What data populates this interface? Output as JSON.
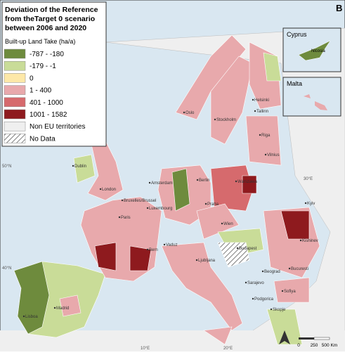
{
  "panel_label": "B",
  "legend": {
    "title_lines": [
      "Deviation of the Reference",
      "from theTarget 0 scenario",
      "between 2006 and 2020"
    ],
    "subtitle": "Built-up Land Take (ha/a)",
    "items": [
      {
        "label": "-787 - -180",
        "color": "#6e8b3d"
      },
      {
        "label": "-179 - -1",
        "color": "#c9dc98"
      },
      {
        "label": "0",
        "color": "#fde8a8"
      },
      {
        "label": "1 - 400",
        "color": "#e8a9ac"
      },
      {
        "label": "401 - 1000",
        "color": "#d66a6d"
      },
      {
        "label": "1001 - 1582",
        "color": "#8e1a1e"
      },
      {
        "label": "Non EU territories",
        "color": "#efefef"
      },
      {
        "label": "No Data",
        "pattern": "hatch"
      }
    ]
  },
  "insets": {
    "cyprus": {
      "title": "Cyprus",
      "city": "Nicosia"
    },
    "malta": {
      "title": "Malta"
    }
  },
  "cities": [
    "Dublin",
    "London",
    "Amsterdam",
    "Berlin",
    "Bruxelles/Brussel",
    "Luxembourg",
    "Paris",
    "Bern",
    "Vaduz",
    "Praha",
    "Wien",
    "Budapest",
    "Ljubljana",
    "Beograd",
    "Sarajevo",
    "Podgorica",
    "Skopje",
    "Sofiya",
    "Bucuresti",
    "Kishinev",
    "Kyiv",
    "Warszawa",
    "Vilnius",
    "Riga",
    "Tallinn",
    "Stockholm",
    "Oslo",
    "Helsinki",
    "Madrid",
    "Lisboa"
  ],
  "graticule": [
    "50°N",
    "40°N",
    "10°E",
    "20°E",
    "30°E"
  ],
  "scale": [
    "0",
    "250",
    "500 Km"
  ]
}
